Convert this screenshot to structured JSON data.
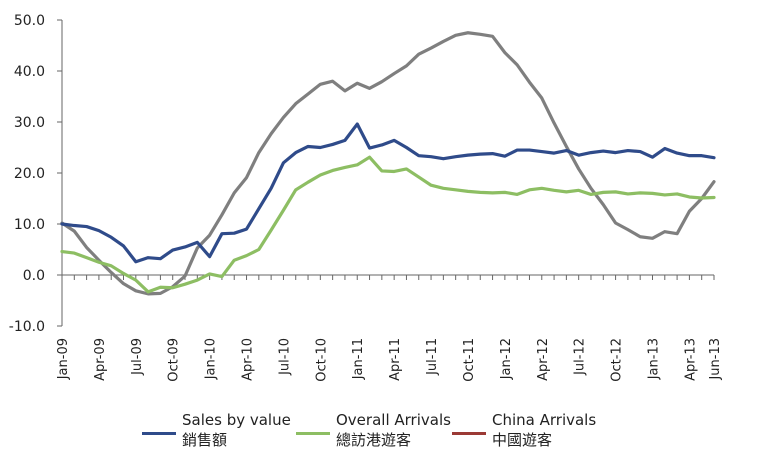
{
  "chart_data": {
    "type": "line",
    "ylim": [
      -10,
      50
    ],
    "y_ticks": [
      "50.0",
      "40.0",
      "30.0",
      "20.0",
      "10.0",
      "0.0",
      "-10.0"
    ],
    "y_tick_values": [
      50,
      40,
      30,
      20,
      10,
      0,
      -10
    ],
    "x_start": "2009-01",
    "x_end": "2013-06",
    "x_tick_labels": [
      "Jan-09",
      "Apr-09",
      "Jul-09",
      "Oct-09",
      "Jan-10",
      "Apr-10",
      "Jul-10",
      "Oct-10",
      "Jan-11",
      "Apr-11",
      "Jul-11",
      "Oct-11",
      "Jan-12",
      "Apr-12",
      "Jul-12",
      "Oct-12",
      "Jan-13",
      "Apr-13",
      "Jun-13"
    ],
    "x_tick_months": [
      0,
      3,
      6,
      9,
      12,
      15,
      18,
      21,
      24,
      27,
      30,
      33,
      36,
      39,
      42,
      45,
      48,
      51,
      53
    ],
    "grid": false,
    "legend_position": "bottom",
    "series": [
      {
        "name_en": "Sales by value",
        "name_zh": "銷售額",
        "color": "#2f4b8a",
        "values": [
          10.0,
          9.7,
          9.5,
          8.7,
          7.4,
          5.7,
          2.6,
          3.4,
          3.2,
          4.9,
          5.5,
          6.4,
          3.6,
          8.1,
          8.2,
          9.0,
          13.0,
          17.0,
          22.0,
          24.0,
          25.2,
          25.0,
          25.6,
          26.4,
          29.6,
          24.9,
          25.5,
          26.4,
          25.0,
          23.4,
          23.2,
          22.8,
          23.2,
          23.5,
          23.7,
          23.8,
          23.3,
          24.5,
          24.5,
          24.2,
          23.9,
          24.4,
          23.5,
          24.0,
          24.3,
          24.0,
          24.4,
          24.2,
          23.1,
          24.8,
          23.9,
          23.4,
          23.4,
          23.0
        ]
      },
      {
        "name_en": "Overall Arrivals",
        "name_zh": "總訪港遊客",
        "color": "#8dbe63",
        "values": [
          4.6,
          4.3,
          3.4,
          2.5,
          1.8,
          0.3,
          -1.0,
          -3.3,
          -2.4,
          -2.5,
          -1.8,
          -1.0,
          0.2,
          -0.3,
          2.9,
          3.8,
          5.0,
          8.8,
          12.7,
          16.7,
          18.2,
          19.6,
          20.5,
          21.1,
          21.6,
          23.1,
          20.4,
          20.3,
          20.8,
          19.2,
          17.6,
          17.0,
          16.7,
          16.4,
          16.2,
          16.1,
          16.2,
          15.8,
          16.7,
          17.0,
          16.6,
          16.3,
          16.6,
          15.8,
          16.2,
          16.3,
          15.9,
          16.1,
          16.0,
          15.7,
          15.9,
          15.3,
          15.1,
          15.2
        ]
      },
      {
        "name_en": "China Arrivals",
        "name_zh": "中國遊客",
        "color": "#7f7f7f",
        "legend_color": "#9b3a35",
        "values": [
          10.2,
          8.6,
          5.4,
          2.9,
          0.5,
          -1.7,
          -3.1,
          -3.7,
          -3.6,
          -2.3,
          -0.2,
          5.3,
          7.8,
          11.8,
          16.1,
          19.1,
          24.0,
          27.7,
          30.9,
          33.6,
          35.5,
          37.4,
          38.0,
          36.1,
          37.6,
          36.6,
          37.9,
          39.5,
          41.0,
          43.3,
          44.5,
          45.8,
          47.0,
          47.5,
          47.2,
          46.8,
          43.6,
          41.2,
          37.8,
          34.7,
          29.8,
          25.2,
          20.8,
          17.0,
          13.8,
          10.2,
          8.9,
          7.5,
          7.2,
          8.5,
          8.1,
          12.5,
          15.0,
          18.3
        ]
      }
    ]
  }
}
